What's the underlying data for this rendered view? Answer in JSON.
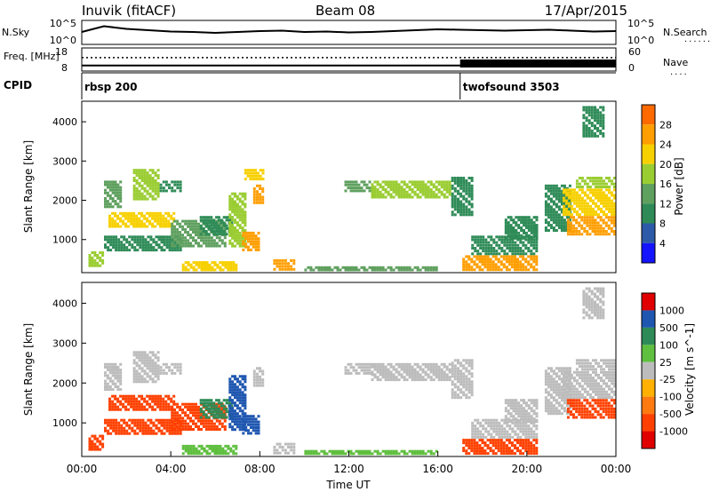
{
  "header": {
    "radar": "Inuvik (fitACF)",
    "beam": "Beam 08",
    "date": "17/Apr/2015"
  },
  "colors": {
    "power_scale": [
      "#1414ff",
      "#2c5aa8",
      "#2e8b57",
      "#5fa05f",
      "#9acd32",
      "#f7d000",
      "#ff9e00",
      "#ff6a00",
      "#e02020"
    ],
    "velocity_scale": [
      "#e00000",
      "#ff4000",
      "#ff7a10",
      "#ffb000",
      "#bcbcbc",
      "#5fbf3f",
      "#2e8b57",
      "#1e56b0"
    ]
  },
  "chart_data": [
    {
      "type": "line",
      "panel": "noise",
      "ylabel_left": "N.Sky",
      "ylabel_right": "N.Search",
      "left_ticks": [
        "10^5",
        "10^0"
      ],
      "right_ticks": [
        "10^5",
        "10^0"
      ],
      "series": [
        {
          "name": "N.Sky",
          "x": [
            "00:00",
            "01:00",
            "02:00",
            "03:00",
            "04:00",
            "05:00",
            "06:00",
            "07:00",
            "08:00",
            "09:00",
            "10:00",
            "11:00",
            "12:00",
            "13:00",
            "14:00",
            "15:00",
            "16:00",
            "17:00",
            "18:00",
            "19:00",
            "20:00",
            "21:00",
            "22:00",
            "23:00",
            "24:00"
          ],
          "values": [
            2.6,
            3.9,
            3.3,
            3.0,
            2.7,
            2.6,
            2.4,
            2.6,
            2.8,
            2.9,
            2.6,
            2.7,
            2.5,
            2.6,
            2.8,
            3.0,
            3.2,
            3.1,
            3.0,
            2.9,
            3.0,
            3.1,
            2.9,
            2.7,
            2.8
          ]
        }
      ]
    },
    {
      "type": "line",
      "panel": "frequency",
      "ylabel_left": "Freq. [MHz]",
      "ylabel_right": "Nave",
      "left_ticks": [
        "18",
        "8"
      ],
      "right_ticks": [
        "60",
        "0"
      ],
      "series": [
        {
          "name": "Freq.",
          "x": [
            "00:00",
            "17:00",
            "24:00"
          ],
          "values": [
            10.5,
            10.5,
            10.5
          ]
        },
        {
          "name": "Nave",
          "x": [
            "00:00",
            "17:00",
            "24:00"
          ],
          "values": [
            17,
            17,
            17
          ]
        }
      ]
    },
    {
      "type": "table",
      "panel": "cpid",
      "label": "CPID",
      "segments": [
        {
          "start": "00:00",
          "name": "rbsp 200"
        },
        {
          "start": "17:00",
          "name": "twofsound 3503"
        }
      ]
    },
    {
      "type": "heatmap",
      "panel": "power",
      "xlabel": "",
      "ylabel": "Slant Range [km]",
      "colorbar_label": "Power [dB]",
      "colorbar_ticks": [
        "28",
        "24",
        "20",
        "16",
        "12",
        "8",
        "4"
      ],
      "yticks": [
        "1000",
        "2000",
        "3000",
        "4000"
      ],
      "ylim": [
        180,
        4500
      ],
      "xlim": [
        0,
        24
      ],
      "patches": [
        {
          "t0": 0.3,
          "t1": 1.0,
          "r0": 300,
          "r1": 700,
          "v": 16
        },
        {
          "t0": 1.0,
          "t1": 1.8,
          "r0": 1800,
          "r1": 2500,
          "v": 12
        },
        {
          "t0": 1.2,
          "t1": 4.2,
          "r0": 1300,
          "r1": 1700,
          "v": 22
        },
        {
          "t0": 2.3,
          "t1": 3.5,
          "r0": 2000,
          "r1": 2800,
          "v": 18
        },
        {
          "t0": 3.5,
          "t1": 4.5,
          "r0": 2200,
          "r1": 2500,
          "v": 10
        },
        {
          "t0": 1.0,
          "t1": 4.5,
          "r0": 700,
          "r1": 1100,
          "v": 10
        },
        {
          "t0": 4.0,
          "t1": 6.5,
          "r0": 800,
          "r1": 1500,
          "v": 14
        },
        {
          "t0": 5.3,
          "t1": 6.8,
          "r0": 1100,
          "r1": 1600,
          "v": 10
        },
        {
          "t0": 6.6,
          "t1": 7.4,
          "r0": 800,
          "r1": 2200,
          "v": 18
        },
        {
          "t0": 7.2,
          "t1": 8.0,
          "r0": 700,
          "r1": 1200,
          "v": 26
        },
        {
          "t0": 7.7,
          "t1": 8.2,
          "r0": 1900,
          "r1": 2400,
          "v": 26
        },
        {
          "t0": 7.3,
          "t1": 8.2,
          "r0": 2500,
          "r1": 2800,
          "v": 20
        },
        {
          "t0": 4.5,
          "t1": 7.0,
          "r0": 200,
          "r1": 450,
          "v": 22
        },
        {
          "t0": 8.6,
          "t1": 9.6,
          "r0": 200,
          "r1": 500,
          "v": 26
        },
        {
          "t0": 10.0,
          "t1": 16.0,
          "r0": 200,
          "r1": 320,
          "v": 14
        },
        {
          "t0": 11.8,
          "t1": 13.0,
          "r0": 2200,
          "r1": 2500,
          "v": 12
        },
        {
          "t0": 13.0,
          "t1": 16.6,
          "r0": 2050,
          "r1": 2500,
          "v": 16
        },
        {
          "t0": 16.6,
          "t1": 17.6,
          "r0": 1600,
          "r1": 2600,
          "v": 8
        },
        {
          "t0": 17.1,
          "t1": 20.5,
          "r0": 200,
          "r1": 600,
          "v": 26
        },
        {
          "t0": 17.5,
          "t1": 20.5,
          "r0": 600,
          "r1": 1100,
          "v": 8
        },
        {
          "t0": 19.0,
          "t1": 20.5,
          "r0": 1000,
          "r1": 1600,
          "v": 10
        },
        {
          "t0": 20.8,
          "t1": 22.0,
          "r0": 1200,
          "r1": 2400,
          "v": 10
        },
        {
          "t0": 21.8,
          "t1": 24.0,
          "r0": 1100,
          "r1": 1600,
          "v": 24
        },
        {
          "t0": 21.6,
          "t1": 24.0,
          "r0": 1600,
          "r1": 2300,
          "v": 20
        },
        {
          "t0": 22.2,
          "t1": 24.0,
          "r0": 2300,
          "r1": 2600,
          "v": 16
        },
        {
          "t0": 22.5,
          "t1": 23.5,
          "r0": 3600,
          "r1": 4400,
          "v": 10
        }
      ]
    },
    {
      "type": "heatmap",
      "panel": "velocity",
      "xlabel": "Time UT",
      "ylabel": "Slant Range [km]",
      "colorbar_label": "Velocity [m s^-1]",
      "colorbar_ticks": [
        "1000",
        "500",
        "100",
        "25",
        "-25",
        "-100",
        "-500",
        "-1000"
      ],
      "yticks": [
        "1000",
        "2000",
        "3000",
        "4000"
      ],
      "xticks": [
        "00:00",
        "04:00",
        "08:00",
        "12:00",
        "16:00",
        "20:00",
        "00:00"
      ],
      "ylim": [
        180,
        4500
      ],
      "xlim": [
        0,
        24
      ],
      "patches": [
        {
          "t0": 0.3,
          "t1": 1.0,
          "r0": 300,
          "r1": 700,
          "v": -100
        },
        {
          "t0": 1.0,
          "t1": 1.8,
          "r0": 1800,
          "r1": 2500,
          "v": 0
        },
        {
          "t0": 1.2,
          "t1": 4.2,
          "r0": 1300,
          "r1": 1700,
          "v": -300
        },
        {
          "t0": 2.3,
          "t1": 3.5,
          "r0": 2000,
          "r1": 2800,
          "v": 0
        },
        {
          "t0": 3.5,
          "t1": 4.5,
          "r0": 2200,
          "r1": 2500,
          "v": 0
        },
        {
          "t0": 1.0,
          "t1": 4.5,
          "r0": 700,
          "r1": 1100,
          "v": -200
        },
        {
          "t0": 4.0,
          "t1": 6.5,
          "r0": 800,
          "r1": 1500,
          "v": -200
        },
        {
          "t0": 5.3,
          "t1": 6.8,
          "r0": 1100,
          "r1": 1600,
          "v": 200
        },
        {
          "t0": 6.6,
          "t1": 7.4,
          "r0": 800,
          "r1": 2200,
          "v": 600
        },
        {
          "t0": 7.2,
          "t1": 8.0,
          "r0": 700,
          "r1": 1200,
          "v": 800
        },
        {
          "t0": 7.7,
          "t1": 8.2,
          "r0": 1900,
          "r1": 2400,
          "v": 0
        },
        {
          "t0": 4.5,
          "t1": 7.0,
          "r0": 200,
          "r1": 450,
          "v": 60
        },
        {
          "t0": 8.6,
          "t1": 9.6,
          "r0": 200,
          "r1": 500,
          "v": 0
        },
        {
          "t0": 10.0,
          "t1": 16.0,
          "r0": 200,
          "r1": 320,
          "v": 60
        },
        {
          "t0": 11.8,
          "t1": 13.0,
          "r0": 2200,
          "r1": 2500,
          "v": 0
        },
        {
          "t0": 13.0,
          "t1": 16.6,
          "r0": 2050,
          "r1": 2500,
          "v": 0
        },
        {
          "t0": 16.6,
          "t1": 17.6,
          "r0": 1600,
          "r1": 2600,
          "v": 0
        },
        {
          "t0": 17.1,
          "t1": 20.5,
          "r0": 200,
          "r1": 600,
          "v": -200
        },
        {
          "t0": 17.5,
          "t1": 20.5,
          "r0": 600,
          "r1": 1100,
          "v": 0
        },
        {
          "t0": 19.0,
          "t1": 20.5,
          "r0": 1000,
          "r1": 1600,
          "v": 0
        },
        {
          "t0": 20.8,
          "t1": 22.0,
          "r0": 1200,
          "r1": 2400,
          "v": 0
        },
        {
          "t0": 21.8,
          "t1": 24.0,
          "r0": 1100,
          "r1": 1600,
          "v": -200
        },
        {
          "t0": 21.6,
          "t1": 24.0,
          "r0": 1600,
          "r1": 2300,
          "v": 0
        },
        {
          "t0": 22.2,
          "t1": 24.0,
          "r0": 2300,
          "r1": 2600,
          "v": 0
        },
        {
          "t0": 22.5,
          "t1": 23.5,
          "r0": 3600,
          "r1": 4400,
          "v": 0
        }
      ]
    }
  ]
}
